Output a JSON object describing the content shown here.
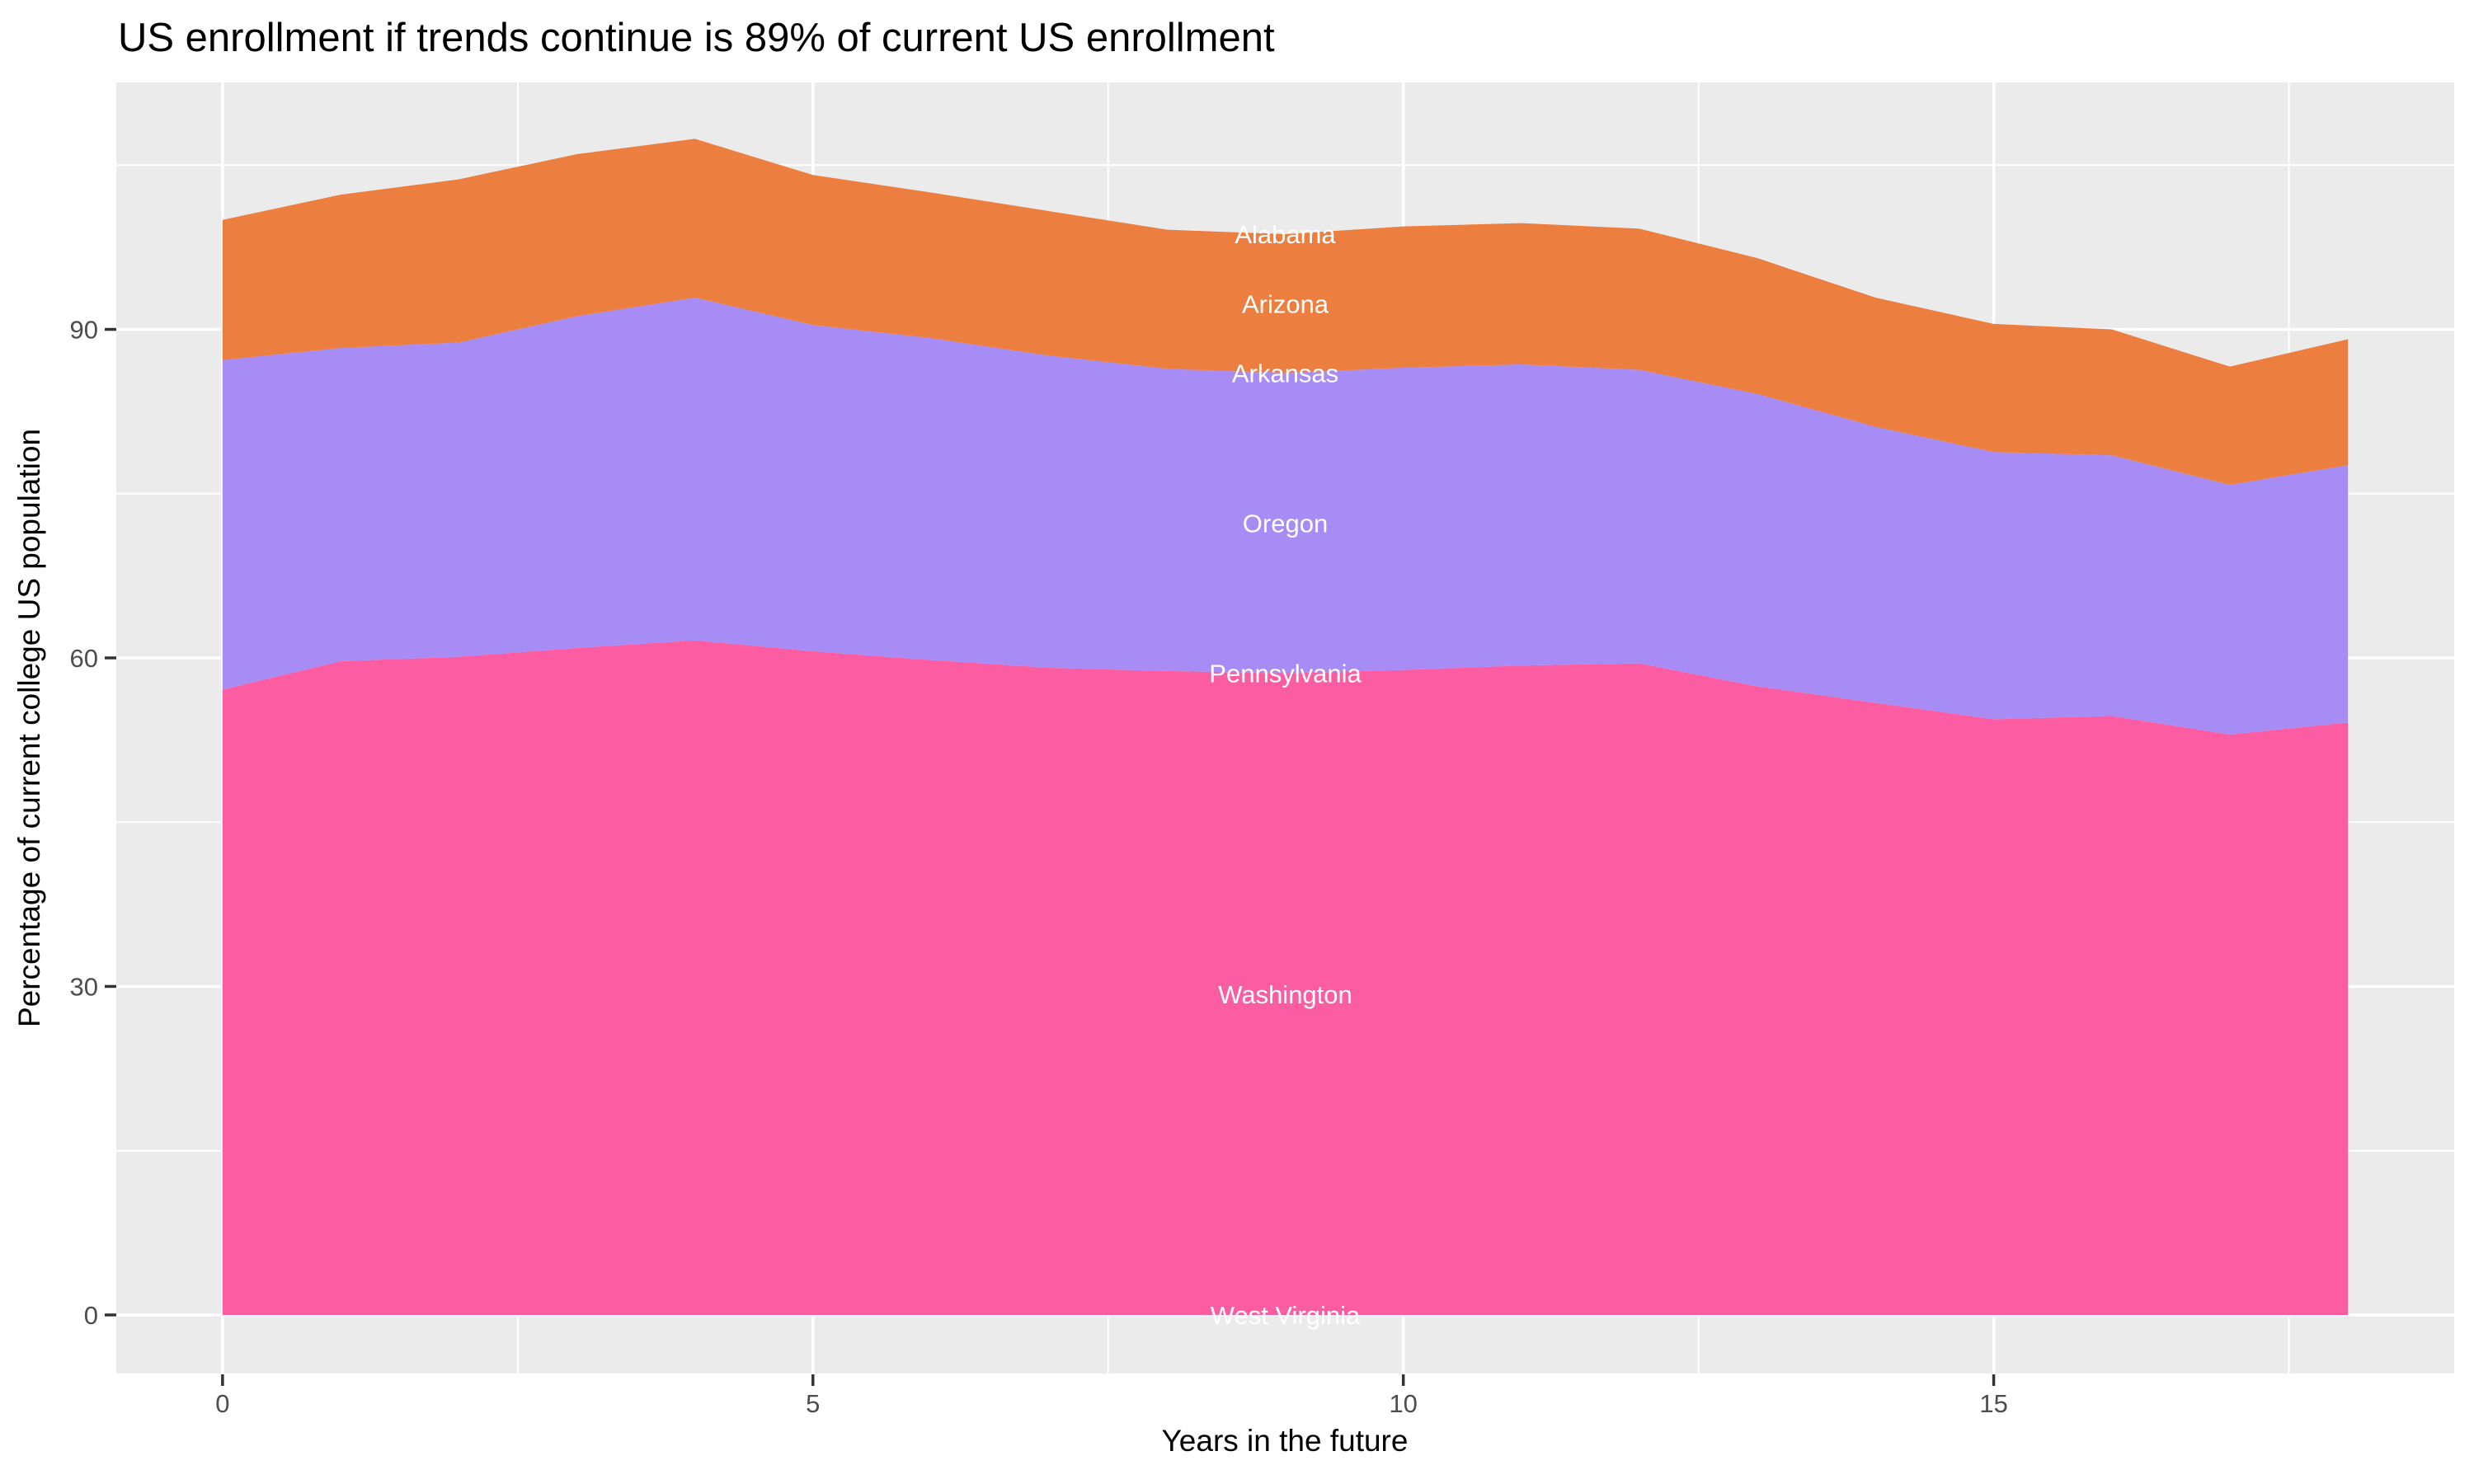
{
  "title": "US enrollment if trends continue is 89% of current US enrollment",
  "colors": {
    "panel_bg": "#EBEBEB",
    "grid": "#FFFFFF",
    "tick_mark": "#333333",
    "tick_text": "#4D4D4D",
    "title_text": "#000000",
    "band_orange": "#EC7F3F",
    "band_purple": "#A88CF6",
    "band_pink": "#FB5CA2",
    "state_label": "#FFFFFF"
  },
  "chart_data": {
    "type": "area",
    "stacked": true,
    "title": "US enrollment if trends continue is 89% of current US enrollment",
    "xlabel": "Years in the future",
    "ylabel": "Percentage of current college US population",
    "x": [
      0,
      1,
      2,
      3,
      4,
      5,
      6,
      7,
      8,
      9,
      10,
      11,
      12,
      13,
      14,
      15,
      16,
      17,
      18
    ],
    "series": [
      {
        "name": "West Virginia",
        "color": "#FB5CA2",
        "values": [
          0,
          0,
          0,
          0,
          0,
          0,
          0,
          0,
          0,
          0,
          0,
          0,
          0,
          0,
          0,
          0,
          0,
          0,
          0
        ]
      },
      {
        "name": "Washington",
        "color": "#FB5CA2",
        "values": [
          57.1,
          59.7,
          60.1,
          60.9,
          61.6,
          60.6,
          59.8,
          59.1,
          58.8,
          58.6,
          58.9,
          59.3,
          59.5,
          57.4,
          55.9,
          54.4,
          54.7,
          53.0,
          54.1
        ]
      },
      {
        "name": "Pennsylvania",
        "color": "#A88CF6",
        "values": [
          0,
          0,
          0,
          0,
          0,
          0,
          0,
          0,
          0,
          0,
          0,
          0,
          0,
          0,
          0,
          0,
          0,
          0,
          0
        ]
      },
      {
        "name": "Oregon",
        "color": "#A88CF6",
        "values": [
          30.1,
          28.6,
          28.7,
          30.3,
          31.3,
          29.8,
          29.4,
          28.5,
          27.6,
          27.4,
          27.6,
          27.5,
          26.8,
          26.7,
          25.2,
          24.4,
          23.8,
          22.8,
          23.5
        ]
      },
      {
        "name": "Arkansas",
        "color": "#EC7F3F",
        "values": [
          0,
          0,
          0,
          0,
          0,
          0,
          0,
          0,
          0,
          0,
          0,
          0,
          0,
          0,
          0,
          0,
          0,
          0,
          0
        ]
      },
      {
        "name": "Arizona",
        "color": "#EC7F3F",
        "values": [
          12.8,
          14.0,
          14.9,
          14.8,
          14.5,
          13.7,
          13.3,
          13.2,
          12.7,
          12.7,
          12.9,
          12.9,
          12.9,
          12.4,
          11.8,
          11.7,
          11.5,
          10.8,
          11.5
        ]
      },
      {
        "name": "Alabama",
        "color": "#EC7F3F",
        "values": [
          0,
          0,
          0,
          0,
          0,
          0,
          0,
          0,
          0,
          0,
          0,
          0,
          0,
          0,
          0,
          0,
          0,
          0,
          0
        ]
      }
    ],
    "label_x_position": 9,
    "x_ticks": [
      0,
      5,
      10,
      15
    ],
    "y_ticks": [
      0,
      30,
      60,
      90
    ],
    "x_minor_ticks": [
      2.5,
      7.5,
      12.5,
      17.5
    ],
    "y_minor_ticks": [
      15,
      45,
      75,
      105
    ],
    "xlim": [
      -0.9,
      18.9
    ],
    "ylim": [
      -5.35,
      112.55
    ],
    "grid": true,
    "legend": "none"
  }
}
